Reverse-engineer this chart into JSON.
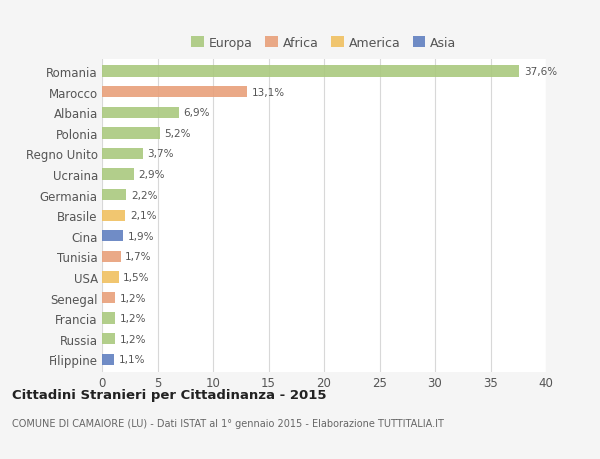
{
  "countries": [
    "Romania",
    "Marocco",
    "Albania",
    "Polonia",
    "Regno Unito",
    "Ucraina",
    "Germania",
    "Brasile",
    "Cina",
    "Tunisia",
    "USA",
    "Senegal",
    "Francia",
    "Russia",
    "Filippine"
  ],
  "values": [
    37.6,
    13.1,
    6.9,
    5.2,
    3.7,
    2.9,
    2.2,
    2.1,
    1.9,
    1.7,
    1.5,
    1.2,
    1.2,
    1.2,
    1.1
  ],
  "labels": [
    "37,6%",
    "13,1%",
    "6,9%",
    "5,2%",
    "3,7%",
    "2,9%",
    "2,2%",
    "2,1%",
    "1,9%",
    "1,7%",
    "1,5%",
    "1,2%",
    "1,2%",
    "1,2%",
    "1,1%"
  ],
  "continents": [
    "Europa",
    "Africa",
    "Europa",
    "Europa",
    "Europa",
    "Europa",
    "Europa",
    "America",
    "Asia",
    "Africa",
    "America",
    "Africa",
    "Europa",
    "Europa",
    "Asia"
  ],
  "continent_colors": {
    "Europa": "#aac97e",
    "Africa": "#e8a07a",
    "America": "#f0c060",
    "Asia": "#6080c0"
  },
  "legend_order": [
    "Europa",
    "Africa",
    "America",
    "Asia"
  ],
  "title": "Cittadini Stranieri per Cittadinanza - 2015",
  "subtitle": "COMUNE DI CAMAIORE (LU) - Dati ISTAT al 1° gennaio 2015 - Elaborazione TUTTITALIA.IT",
  "xlim": [
    0,
    40
  ],
  "xticks": [
    0,
    5,
    10,
    15,
    20,
    25,
    30,
    35,
    40
  ],
  "background_color": "#f5f5f5",
  "plot_background": "#ffffff",
  "grid_color": "#d8d8d8",
  "text_color": "#555555",
  "title_color": "#222222",
  "subtitle_color": "#666666",
  "bar_height": 0.55
}
